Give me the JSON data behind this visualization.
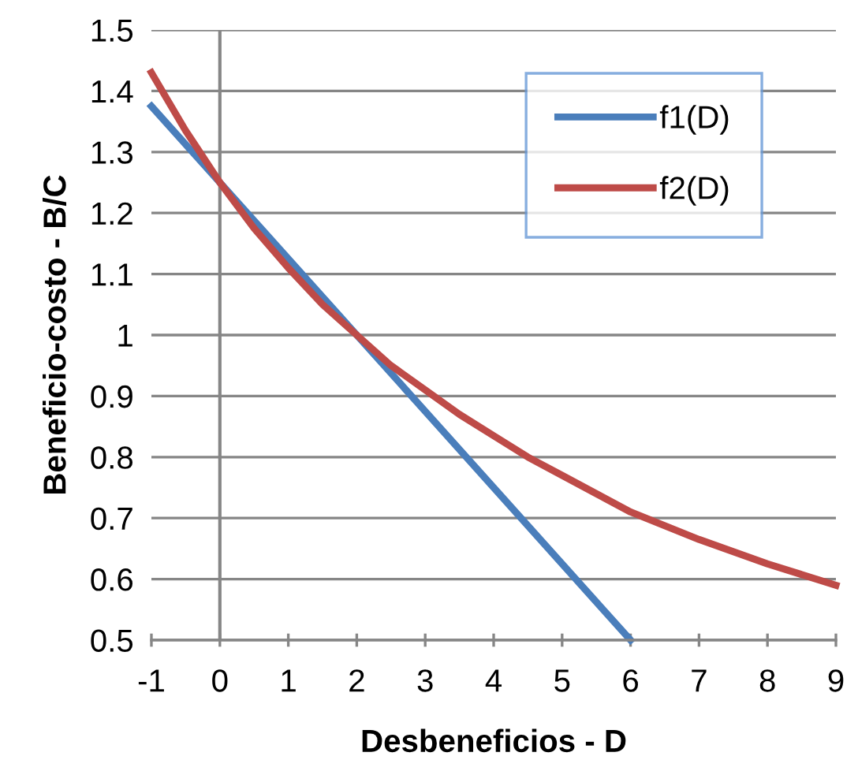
{
  "chart_data": {
    "type": "line",
    "xlabel": "Desbeneficios - D",
    "ylabel": "Beneficio-costo - B/C",
    "series": [
      {
        "name": "f1(D)",
        "color": "#4a7ebb",
        "x": [
          -1,
          0,
          2,
          4,
          6
        ],
        "values": [
          1.375,
          1.25,
          1.0,
          0.75,
          0.5
        ]
      },
      {
        "name": "f2(D)",
        "color": "#be4b48",
        "x": [
          -1,
          -0.5,
          0,
          0.5,
          1,
          1.5,
          2,
          2.5,
          3,
          3.5,
          4,
          4.5,
          5,
          5.5,
          6,
          7,
          8,
          9
        ],
        "values": [
          1.43,
          1.335,
          1.25,
          1.175,
          1.11,
          1.05,
          1.0,
          0.95,
          0.91,
          0.87,
          0.835,
          0.8,
          0.77,
          0.74,
          0.71,
          0.665,
          0.625,
          0.59
        ]
      }
    ],
    "xlim": [
      -1,
      9
    ],
    "ylim": [
      0.5,
      1.5
    ],
    "xticks": [
      -1,
      0,
      1,
      2,
      3,
      4,
      5,
      6,
      7,
      8,
      9
    ],
    "yticks": [
      0.5,
      0.6,
      0.7,
      0.8,
      0.9,
      1,
      1.1,
      1.2,
      1.3,
      1.4,
      1.5
    ],
    "grid": "y",
    "legend": "top right",
    "marker": "none",
    "line_style": "solid"
  }
}
